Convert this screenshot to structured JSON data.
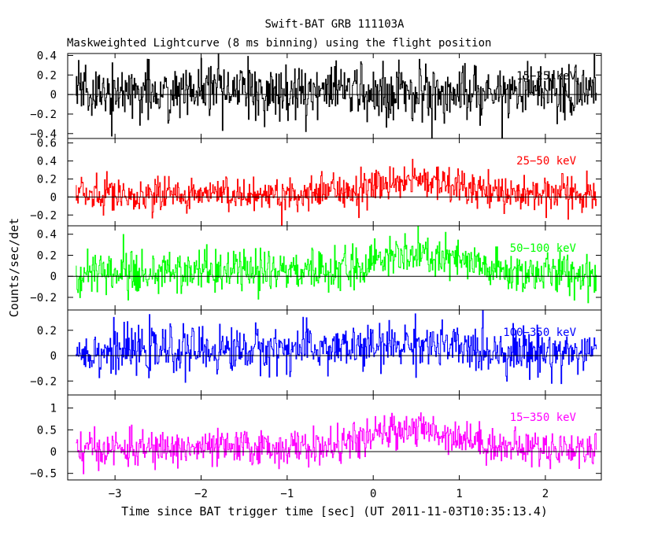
{
  "chart_data": {
    "type": "line",
    "title": "Swift-BAT GRB 111103A",
    "subtitle": "Maskweighted Lightcurve (8 ms binning) using the flight position",
    "xlabel": "Time since BAT trigger time [sec] (UT 2011-11-03T10:35:13.4)",
    "ylabel": "Counts/sec/det",
    "xlim": [
      -3.55,
      2.65
    ],
    "x_ticks": [
      "-3",
      "-2",
      "-1",
      "0",
      "1",
      "2"
    ],
    "x_tick_values": [
      -3,
      -2,
      -1,
      0,
      1,
      2
    ],
    "data_start": -3.45,
    "data_end": 2.6,
    "bin_seconds": 0.008,
    "grid": false,
    "panels": [
      {
        "name": "15-25 keV",
        "label": "15−25 keV",
        "color": "#000000",
        "ylim": [
          -0.45,
          0.42
        ],
        "yticks": [
          -0.4,
          -0.2,
          0,
          0.2,
          0.4
        ],
        "yticklabels": [
          "−0.4",
          "−0.2",
          "0",
          "0.2",
          "0.4"
        ],
        "noise": 0.14,
        "trend": [
          [
            -3.45,
            0.03
          ],
          [
            2.6,
            0.03
          ]
        ]
      },
      {
        "name": "25-50 keV",
        "label": "25−50 keV",
        "color": "#ff0000",
        "ylim": [
          -0.32,
          0.65
        ],
        "yticks": [
          -0.2,
          0,
          0.2,
          0.4,
          0.6
        ],
        "yticklabels": [
          "−0.2",
          "0",
          "0.2",
          "0.4",
          "0.6"
        ],
        "noise": 0.1,
        "trend": [
          [
            -3.45,
            0.02
          ],
          [
            -0.6,
            0.04
          ],
          [
            0,
            0.12
          ],
          [
            0.4,
            0.2
          ],
          [
            0.9,
            0.14
          ],
          [
            1.5,
            0.05
          ],
          [
            2.6,
            0.02
          ]
        ]
      },
      {
        "name": "50-100 keV",
        "label": "50−100 keV",
        "color": "#00ff00",
        "ylim": [
          -0.32,
          0.48
        ],
        "yticks": [
          -0.2,
          0,
          0.2,
          0.4
        ],
        "yticklabels": [
          "−0.2",
          "0",
          "0.2",
          "0.4"
        ],
        "noise": 0.1,
        "trend": [
          [
            -3.45,
            0.03
          ],
          [
            -0.5,
            0.05
          ],
          [
            0,
            0.15
          ],
          [
            0.5,
            0.2
          ],
          [
            1.0,
            0.14
          ],
          [
            1.5,
            0.04
          ],
          [
            2.6,
            0.02
          ]
        ]
      },
      {
        "name": "100-350 keV",
        "label": "100−350 keV",
        "color": "#0000ff",
        "ylim": [
          -0.31,
          0.36
        ],
        "yticks": [
          -0.2,
          0,
          0.2
        ],
        "yticklabels": [
          "−0.2",
          "0",
          "0.2"
        ],
        "noise": 0.09,
        "trend": [
          [
            -3.45,
            0.03
          ],
          [
            0,
            0.06
          ],
          [
            0.5,
            0.1
          ],
          [
            1.0,
            0.05
          ],
          [
            2.6,
            0.02
          ]
        ]
      },
      {
        "name": "15-350 keV",
        "label": "15−350 keV",
        "color": "#ff00ff",
        "ylim": [
          -0.65,
          1.3
        ],
        "yticks": [
          -0.5,
          0,
          0.5,
          1
        ],
        "yticklabels": [
          "−0.5",
          "0",
          "0.5",
          "1"
        ],
        "noise": 0.2,
        "trend": [
          [
            -3.45,
            0.05
          ],
          [
            -0.5,
            0.1
          ],
          [
            0,
            0.35
          ],
          [
            0.4,
            0.55
          ],
          [
            1.0,
            0.35
          ],
          [
            1.5,
            0.1
          ],
          [
            2.6,
            0.05
          ]
        ]
      }
    ]
  }
}
